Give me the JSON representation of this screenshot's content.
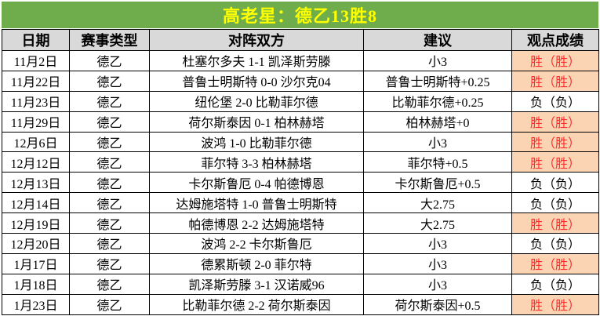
{
  "title": {
    "text": "高老星：德乙13胜8",
    "bg_color": "#6FAC4B",
    "text_color": "#FFFF00"
  },
  "table": {
    "header_bg": "#D9D9D9",
    "win_bg": "#FBD4B4",
    "win_text_color": "#FF2D2D",
    "border_color": "#000000",
    "columns": [
      {
        "key": "date",
        "label": "日期"
      },
      {
        "key": "league",
        "label": "赛事类型"
      },
      {
        "key": "match",
        "label": "对阵双方"
      },
      {
        "key": "advice",
        "label": "建议"
      },
      {
        "key": "result",
        "label": "观点成绩"
      }
    ],
    "rows": [
      {
        "date": "11月2日",
        "league": "德乙",
        "match": "杜塞尔多夫 1-1 凯泽斯劳滕",
        "advice": "小3",
        "result": "胜（胜）",
        "win": true
      },
      {
        "date": "11月22日",
        "league": "德乙",
        "match": "普鲁士明斯特 0-0 沙尔克04",
        "advice": "普鲁士明斯特+0.25",
        "result": "胜（胜）",
        "win": true
      },
      {
        "date": "11月23日",
        "league": "德乙",
        "match": "纽伦堡 2-0 比勒菲尔德",
        "advice": "比勒菲尔德+0.25",
        "result": "负（负）",
        "win": false
      },
      {
        "date": "11月29日",
        "league": "德乙",
        "match": "荷尔斯泰因 0-1 柏林赫塔",
        "advice": "柏林赫塔+0",
        "result": "胜（胜）",
        "win": true
      },
      {
        "date": "12月6日",
        "league": "德乙",
        "match": "波鸿 1-0 比勒菲尔德",
        "advice": "小3",
        "result": "胜（胜）",
        "win": true
      },
      {
        "date": "12月12日",
        "league": "德乙",
        "match": "菲尔特 3-3 柏林赫塔",
        "advice": "菲尔特+0.5",
        "result": "胜（胜）",
        "win": true
      },
      {
        "date": "12月13日",
        "league": "德乙",
        "match": "卡尔斯鲁厄 0-4 帕德博恩",
        "advice": "卡尔斯鲁厄+0.5",
        "result": "负（负）",
        "win": false
      },
      {
        "date": "12月14日",
        "league": "德乙",
        "match": "达姆施塔特 1-0 普鲁士明斯特",
        "advice": "大2.75",
        "result": "负（负）",
        "win": false
      },
      {
        "date": "12月19日",
        "league": "德乙",
        "match": "帕德博恩 2-2 达姆施塔特",
        "advice": "大2.75",
        "result": "胜（胜）",
        "win": true
      },
      {
        "date": "12月20日",
        "league": "德乙",
        "match": "波鸿 2-2 卡尔斯鲁厄",
        "advice": "小3",
        "result": "负（负）",
        "win": false
      },
      {
        "date": "1月17日",
        "league": "德乙",
        "match": "德累斯顿 2-0 菲尔特",
        "advice": "小3",
        "result": "胜（胜）",
        "win": true
      },
      {
        "date": "1月18日",
        "league": "德乙",
        "match": "凯泽斯劳滕 3-1 汉诺威96",
        "advice": "小3",
        "result": "负（负）",
        "win": false
      },
      {
        "date": "1月23日",
        "league": "德乙",
        "match": "比勒菲尔德 2-2 荷尔斯泰因",
        "advice": "荷尔斯泰因+0.5",
        "result": "胜（胜）",
        "win": true
      }
    ]
  }
}
